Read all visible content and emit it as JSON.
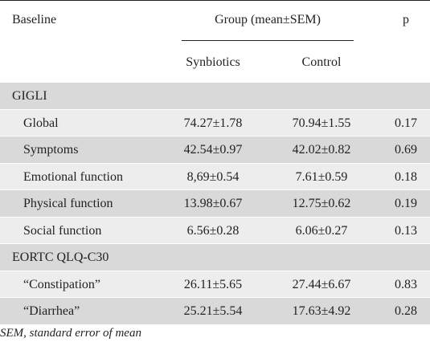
{
  "header": {
    "baseline": "Baseline",
    "group": "Group (mean±SEM)",
    "p": "p",
    "col_synbiotics": "Synbiotics",
    "col_control": "Control"
  },
  "rows": [
    {
      "type": "section",
      "label": "GIGLI",
      "synbiotics": "",
      "control": "",
      "p": ""
    },
    {
      "type": "item",
      "label": "Global",
      "synbiotics": "74.27±1.78",
      "control": "70.94±1.55",
      "p": "0.17"
    },
    {
      "type": "item",
      "label": "Symptoms",
      "synbiotics": "42.54±0.97",
      "control": "42.02±0.82",
      "p": "0.69"
    },
    {
      "type": "item",
      "label": "Emotional function",
      "synbiotics": "8,69±0.54",
      "control": "7.61±0.59",
      "p": "0.18"
    },
    {
      "type": "item",
      "label": "Physical function",
      "synbiotics": "13.98±0.67",
      "control": "12.75±0.62",
      "p": "0.19"
    },
    {
      "type": "item",
      "label": "Social function",
      "synbiotics": "6.56±0.28",
      "control": "6.06±0.27",
      "p": "0.13"
    },
    {
      "type": "section",
      "label": "EORTC QLQ-C30",
      "synbiotics": "",
      "control": "",
      "p": ""
    },
    {
      "type": "item",
      "label": "“Constipation”",
      "synbiotics": "26.11±5.65",
      "control": "27.44±6.67",
      "p": "0.83"
    },
    {
      "type": "item",
      "label": "“Diarrhea”",
      "synbiotics": "25.21±5.54",
      "control": "17.63±4.92",
      "p": "0.28"
    }
  ],
  "footnote": "SEM, standard error of mean",
  "colors": {
    "row_dark": "#d9d9d9",
    "row_light": "#ededed",
    "text": "#231f20"
  }
}
